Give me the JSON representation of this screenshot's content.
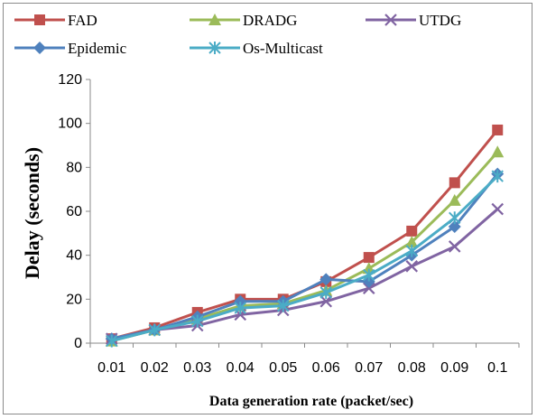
{
  "chart_data": {
    "type": "line",
    "xlabel": "Data generation rate (packet/sec)",
    "ylabel": "Delay (seconds)",
    "categories": [
      "0.01",
      "0.02",
      "0.03",
      "0.04",
      "0.05",
      "0.06",
      "0.07",
      "0.08",
      "0.09",
      "0.1"
    ],
    "ylim": [
      0,
      120
    ],
    "yticks": [
      0,
      20,
      40,
      60,
      80,
      100,
      120
    ],
    "grid": false,
    "legend": "top",
    "series": [
      {
        "name": "FAD",
        "color": "#C0504D",
        "marker": "square",
        "values": [
          2,
          7,
          14,
          20,
          20,
          28,
          39,
          51,
          73,
          97
        ]
      },
      {
        "name": "DRADG",
        "color": "#9BBB59",
        "marker": "triangle",
        "values": [
          1,
          6,
          11,
          17,
          18,
          24,
          34,
          46,
          65,
          87
        ]
      },
      {
        "name": "UTDG",
        "color": "#8064A2",
        "marker": "x",
        "values": [
          2,
          6,
          8,
          13,
          15,
          19,
          25,
          35,
          44,
          61
        ]
      },
      {
        "name": "Epidemic",
        "color": "#4F81BD",
        "marker": "diamond",
        "values": [
          2,
          6,
          12,
          19,
          19,
          29,
          28,
          40,
          53,
          77
        ]
      },
      {
        "name": "Os-Multicast",
        "color": "#4BACC6",
        "marker": "asterisk",
        "values": [
          1,
          6,
          10,
          16,
          17,
          23,
          31,
          42,
          57,
          76
        ]
      }
    ]
  }
}
